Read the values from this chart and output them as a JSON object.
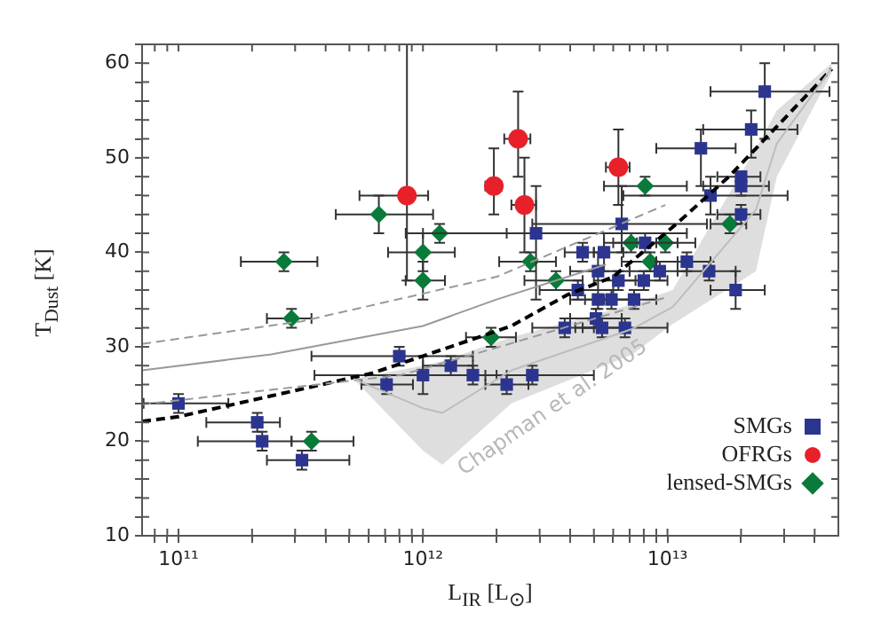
{
  "chart_data": {
    "type": "scatter",
    "xlabel": "L$_{IR}$ [L$_{⊙}$]",
    "ylabel": "T$_{Dust}$ [K]",
    "log": "x",
    "grid": false,
    "legend": "bottom right",
    "xlim": [
      71000000000.0,
      50000000000000.0
    ],
    "ylim": [
      10,
      62
    ],
    "xticks": [
      {
        "value": 80000000000.0,
        "label": null
      },
      {
        "value": 90000000000.0,
        "label": null
      },
      {
        "value": 100000000000.0,
        "label": "10¹¹"
      },
      {
        "value": 200000000000.0,
        "label": null
      },
      {
        "value": 300000000000.0,
        "label": null
      },
      {
        "value": 400000000000.0,
        "label": null
      },
      {
        "value": 500000000000.0,
        "label": null
      },
      {
        "value": 600000000000.0,
        "label": null
      },
      {
        "value": 700000000000.0,
        "label": null
      },
      {
        "value": 800000000000.0,
        "label": null
      },
      {
        "value": 900000000000.0,
        "label": null
      },
      {
        "value": 1000000000000.0,
        "label": "10¹²"
      },
      {
        "value": 2000000000000.0,
        "label": null
      },
      {
        "value": 3000000000000.0,
        "label": null
      },
      {
        "value": 4000000000000.0,
        "label": null
      },
      {
        "value": 5000000000000.0,
        "label": null
      },
      {
        "value": 6000000000000.0,
        "label": null
      },
      {
        "value": 7000000000000.0,
        "label": null
      },
      {
        "value": 8000000000000.0,
        "label": null
      },
      {
        "value": 9000000000000.0,
        "label": null
      },
      {
        "value": 10000000000000.0,
        "label": "10¹³"
      },
      {
        "value": 20000000000000.0,
        "label": null
      },
      {
        "value": 30000000000000.0,
        "label": null
      },
      {
        "value": 40000000000000.0,
        "label": null
      }
    ],
    "yticks": [
      10,
      {
        "value": 12,
        "label": null
      },
      {
        "value": 14,
        "label": null
      },
      {
        "value": 16,
        "label": null
      },
      {
        "value": 18,
        "label": null
      },
      20,
      {
        "value": 22,
        "label": null
      },
      {
        "value": 24,
        "label": null
      },
      {
        "value": 26,
        "label": null
      },
      {
        "value": 28,
        "label": null
      },
      30,
      {
        "value": 32,
        "label": null
      },
      {
        "value": 34,
        "label": null
      },
      {
        "value": 36,
        "label": null
      },
      {
        "value": 38,
        "label": null
      },
      40,
      {
        "value": 42,
        "label": null
      },
      {
        "value": 44,
        "label": null
      },
      {
        "value": 46,
        "label": null
      },
      {
        "value": 48,
        "label": null
      },
      50,
      {
        "value": 52,
        "label": null
      },
      {
        "value": 54,
        "label": null
      },
      {
        "value": 56,
        "label": null
      },
      {
        "value": 58,
        "label": null
      },
      60,
      {
        "value": 62,
        "label": null
      }
    ],
    "annotations": [
      "Chapman et al. 2005"
    ],
    "series": [
      {
        "type": "line",
        "color": "#bdbdbd",
        "x": [
          520000000000.0,
          1000000000000.0,
          1200000000000.0,
          2300000000000.0,
          7200000000000.0,
          10500000000000.0,
          23000000000000.0,
          28000000000000.0,
          47000000000000.0
        ],
        "values": [
          26.6,
          23.5,
          23,
          27.5,
          31.9,
          34.2,
          44.5,
          51.5,
          59.5
        ],
        "upper": [
          26.6,
          28,
          28.5,
          31,
          34.5,
          36,
          51,
          55,
          60
        ],
        "lower": [
          26.6,
          19,
          17.5,
          24,
          29.2,
          32.4,
          38,
          48,
          59
        ]
      },
      {
        "type": "line",
        "color": "#999999",
        "line_style": "dashed",
        "x": [
          71000000000.0,
          320000000000.0,
          2000000000000.0,
          9800000000000.0
        ],
        "values": [
          30.3,
          32.7,
          37.4,
          45
        ]
      },
      {
        "type": "line",
        "color": "#999999",
        "line_style": "solid",
        "x": [
          71000000000.0,
          240000000000.0,
          1000000000000.0,
          2000000000000.0,
          5600000000000.0
        ],
        "values": [
          27.5,
          29.2,
          32.2,
          35,
          38.7
        ]
      },
      {
        "type": "line",
        "color": "#999999",
        "line_style": "dashed",
        "x": [
          71000000000.0,
          810000000000.0,
          2000000000000.0,
          9800000000000.0
        ],
        "values": [
          23.9,
          27.0,
          29.9,
          35.2
        ]
      },
      {
        "type": "line",
        "color": "#000000",
        "line_style": "dashed",
        "x": [
          71000000000.0,
          100000000000.0,
          240000000000.0,
          620000000000.0,
          1600000000000.0,
          2300000000000.0,
          3900000000000.0,
          6000000000000.0,
          11000000000000.0,
          18000000000000.0,
          47000000000000.0
        ],
        "values": [
          22.1,
          22.6,
          24.8,
          27.2,
          30.8,
          32.2,
          35.5,
          37.4,
          43.1,
          48.1,
          59.4
        ]
      },
      {
        "type": "scatter",
        "name": "SMGs",
        "color": "#2b3590",
        "marker": "square",
        "x": [
          100000000000.0,
          210000000000.0,
          220000000000.0,
          320000000000.0,
          710000000000.0,
          800000000000.0,
          1000000000000.0,
          1300000000000.0,
          1600000000000.0,
          2200000000000.0,
          2800000000000.0,
          2900000000000.0,
          3800000000000.0,
          4300000000000.0,
          4500000000000.0,
          5100000000000.0,
          5200000000000.0,
          5200000000000.0,
          5400000000000.0,
          5500000000000.0,
          5900000000000.0,
          6300000000000.0,
          6500000000000.0,
          6700000000000.0,
          7300000000000.0,
          8000000000000.0,
          8100000000000.0,
          9300000000000.0,
          12000000000000.0,
          13700000000000.0,
          14800000000000.0,
          15000000000000.0,
          19000000000000.0,
          20000000000000.0,
          20000000000000.0,
          20000000000000.0,
          22000000000000.0,
          25000000000000.0
        ],
        "values": [
          24,
          22,
          20,
          18,
          26,
          29,
          27,
          28,
          27,
          26,
          27,
          42,
          32,
          36,
          40,
          33,
          35,
          38,
          32,
          40,
          35,
          37,
          43,
          32,
          35,
          37,
          41,
          38,
          39,
          51,
          38,
          46,
          36,
          44,
          47,
          48,
          53,
          57
        ],
        "xerrors": [
          [
            72000000000.0,
            160000000000.0
          ],
          [
            130000000000.0,
            260000000000.0
          ],
          [
            120000000000.0,
            290000000000.0
          ],
          [
            230000000000.0,
            500000000000.0
          ],
          [
            560000000000.0,
            910000000000.0
          ],
          [
            350000000000.0,
            1600000000000.0
          ],
          [
            360000000000.0,
            2200000000000.0
          ],
          [
            1000000000000.0,
            1600000000000.0
          ],
          [
            1000000000000.0,
            2000000000000.0
          ],
          [
            1800000000000.0,
            2700000000000.0
          ],
          [
            1800000000000.0,
            5000000000000.0
          ],
          [
            1000000000000.0,
            12000000000000.0
          ],
          [
            2800000000000.0,
            5000000000000.0
          ],
          [
            3000000000000.0,
            6000000000000.0
          ],
          [
            3800000000000.0,
            5000000000000.0
          ],
          [
            4000000000000.0,
            6500000000000.0
          ],
          [
            4000000000000.0,
            7000000000000.0
          ],
          [
            4000000000000.0,
            7000000000000.0
          ],
          [
            4200000000000.0,
            7000000000000.0
          ],
          [
            5000000000000.0,
            6600000000000.0
          ],
          [
            4600000000000.0,
            7500000000000.0
          ],
          [
            5000000000000.0,
            7400000000000.0
          ],
          [
            2800000000000.0,
            14500000000000.0
          ],
          [
            4500000000000.0,
            10000000000000.0
          ],
          [
            5500000000000.0,
            9000000000000.0
          ],
          [
            6000000000000.0,
            10000000000000.0
          ],
          [
            6000000000000.0,
            11000000000000.0
          ],
          [
            7000000000000.0,
            12000000000000.0
          ],
          [
            9000000000000.0,
            15000000000000.0
          ],
          [
            9000000000000.0,
            19000000000000.0
          ],
          [
            11000000000000.0,
            19000000000000.0
          ],
          [
            6600000000000.0,
            31000000000000.0
          ],
          [
            15000000000000.0,
            25000000000000.0
          ],
          [
            16000000000000.0,
            24000000000000.0
          ],
          [
            14000000000000.0,
            26000000000000.0
          ],
          [
            16000000000000.0,
            24000000000000.0
          ],
          [
            14000000000000.0,
            34000000000000.0
          ],
          [
            15000000000000.0,
            46000000000000.0
          ]
        ],
        "errors": [
          [
            23,
            25
          ],
          [
            21,
            23
          ],
          [
            19,
            21
          ],
          [
            17,
            19
          ],
          [
            25,
            27
          ],
          [
            28,
            30
          ],
          [
            25,
            29
          ],
          [
            27,
            29
          ],
          [
            26,
            28
          ],
          [
            25,
            27
          ],
          [
            26,
            28
          ],
          [
            35,
            47
          ],
          [
            31,
            33
          ],
          [
            35,
            37
          ],
          [
            39,
            41
          ],
          [
            32,
            34
          ],
          [
            34,
            36
          ],
          [
            36,
            40
          ],
          [
            31,
            33
          ],
          [
            38,
            42
          ],
          [
            34,
            36
          ],
          [
            36,
            38
          ],
          [
            40,
            47
          ],
          [
            31,
            33
          ],
          [
            34,
            36
          ],
          [
            36,
            38
          ],
          [
            40,
            42
          ],
          [
            37,
            39
          ],
          [
            38,
            40
          ],
          [
            47,
            53
          ],
          [
            37,
            39
          ],
          [
            44,
            48
          ],
          [
            34,
            38
          ],
          [
            43,
            45
          ],
          [
            46,
            48
          ],
          null,
          [
            50,
            55
          ],
          [
            52,
            60
          ]
        ]
      },
      {
        "type": "scatter",
        "name": "OFRGs",
        "color": "#e8202a",
        "marker": "circle",
        "x": [
          860000000000.0,
          1950000000000.0,
          2450000000000.0,
          2600000000000.0,
          6300000000000.0
        ],
        "values": [
          46,
          47,
          52,
          45,
          49
        ],
        "xerrors": [
          [
            550000000000.0,
            1050000000000.0
          ],
          [
            1800000000000.0,
            2100000000000.0
          ],
          [
            2150000000000.0,
            2750000000000.0
          ],
          [
            2300000000000.0,
            2900000000000.0
          ],
          [
            5600000000000.0,
            7000000000000.0
          ]
        ],
        "errors": [
          [
            37,
            62
          ],
          [
            44,
            51
          ],
          [
            48,
            57
          ],
          [
            40,
            50
          ],
          [
            45,
            53
          ]
        ]
      },
      {
        "type": "scatter",
        "name": "lensed-SMGs",
        "color": "#0a7a3a",
        "marker": "diamond",
        "x": [
          270000000000.0,
          290000000000.0,
          350000000000.0,
          660000000000.0,
          1000000000000.0,
          1000000000000.0,
          1170000000000.0,
          1900000000000.0,
          2750000000000.0,
          3500000000000.0,
          7100000000000.0,
          8100000000000.0,
          8500000000000.0,
          9800000000000.0,
          18000000000000.0
        ],
        "values": [
          39,
          33,
          20,
          44,
          40,
          37,
          42,
          31,
          39,
          37,
          41,
          47,
          39,
          41,
          43
        ],
        "xerrors": [
          [
            180000000000.0,
            370000000000.0
          ],
          [
            230000000000.0,
            350000000000.0
          ],
          [
            290000000000.0,
            520000000000.0
          ],
          [
            440000000000.0,
            1100000000000.0
          ],
          [
            720000000000.0,
            1350000000000.0
          ],
          [
            850000000000.0,
            1230000000000.0
          ],
          [
            850000000000.0,
            2200000000000.0
          ],
          [
            1500000000000.0,
            2400000000000.0
          ],
          [
            2050000000000.0,
            3500000000000.0
          ],
          [
            2600000000000.0,
            4500000000000.0
          ],
          [
            5500000000000.0,
            9000000000000.0
          ],
          [
            5500000000000.0,
            12000000000000.0
          ],
          [
            6500000000000.0,
            11000000000000.0
          ],
          [
            7500000000000.0,
            13000000000000.0
          ],
          [
            15000000000000.0,
            21000000000000.0
          ]
        ],
        "errors": [
          [
            38,
            40
          ],
          [
            32,
            34
          ],
          [
            19,
            21
          ],
          [
            42,
            46
          ],
          [
            38,
            42
          ],
          [
            35,
            39
          ],
          [
            41,
            43
          ],
          [
            30,
            32
          ],
          [
            38,
            40
          ],
          [
            36,
            38
          ],
          [
            40,
            42
          ],
          [
            46,
            48
          ],
          [
            38,
            40
          ],
          [
            40,
            42
          ],
          [
            42,
            44
          ]
        ]
      }
    ]
  }
}
